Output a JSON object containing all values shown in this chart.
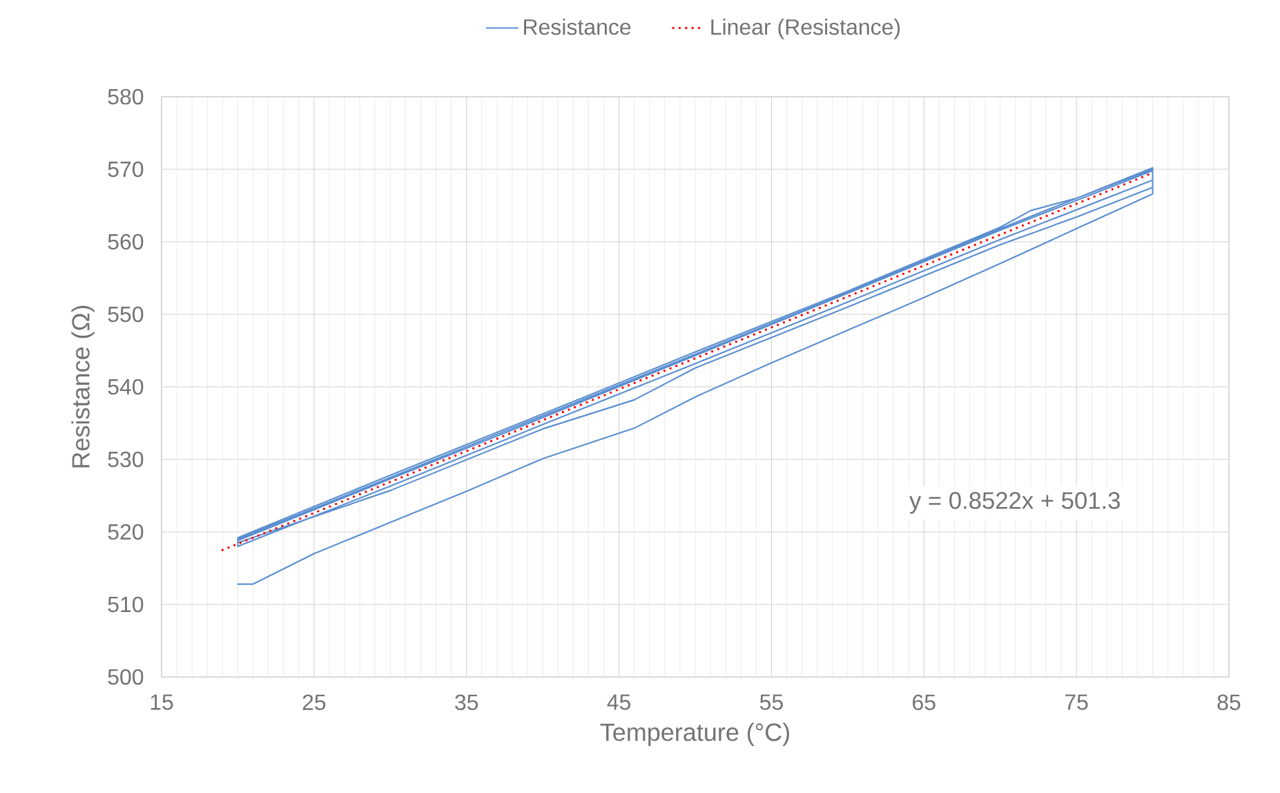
{
  "chart_data": {
    "type": "line",
    "xlabel": "Temperature (°C)",
    "ylabel": "Resistance (Ω)",
    "xlim": [
      15,
      85
    ],
    "ylim": [
      500,
      580
    ],
    "xticks": [
      15,
      25,
      35,
      45,
      55,
      65,
      75,
      85
    ],
    "yticks": [
      500,
      510,
      520,
      530,
      540,
      550,
      560,
      570,
      580
    ],
    "grid": true,
    "legend": "top",
    "marker": "none",
    "annotations": [
      "y = 0.8522x + 501.3"
    ],
    "series": [
      {
        "name": "Resistance",
        "color": "#5b8fd0",
        "line_style": "solid",
        "x": [
          20,
          21,
          25,
          30,
          35,
          40,
          46,
          50,
          55,
          60,
          65,
          70,
          75,
          80,
          80,
          75,
          72,
          70,
          60,
          50,
          43,
          30,
          20,
          20,
          30,
          40,
          46,
          50,
          60,
          70,
          75,
          80,
          80,
          70,
          60,
          50,
          42,
          30,
          20,
          20,
          30,
          40,
          50,
          60,
          70,
          80,
          80,
          70,
          60,
          50,
          37,
          30,
          20
        ],
        "values": [
          512.8,
          512.8,
          517.0,
          521.3,
          525.6,
          530.1,
          534.3,
          538.6,
          543.3,
          547.8,
          552.3,
          557.0,
          561.8,
          566.6,
          570.0,
          566.0,
          564.3,
          562.0,
          553.2,
          544.8,
          538.8,
          527.8,
          519.2,
          518.5,
          525.7,
          534.2,
          538.2,
          542.6,
          551.0,
          559.6,
          563.4,
          567.5,
          570.2,
          561.8,
          553.0,
          544.5,
          537.7,
          527.5,
          519.0,
          518.0,
          526.3,
          534.8,
          543.2,
          551.7,
          560.3,
          568.5,
          569.8,
          561.6,
          552.9,
          544.3,
          533.2,
          527.3,
          518.8
        ]
      },
      {
        "name": "Linear (Resistance)",
        "color": "#ff0000",
        "line_style": "dotted",
        "x": [
          19,
          80
        ],
        "values": [
          517.5,
          569.5
        ]
      }
    ]
  }
}
